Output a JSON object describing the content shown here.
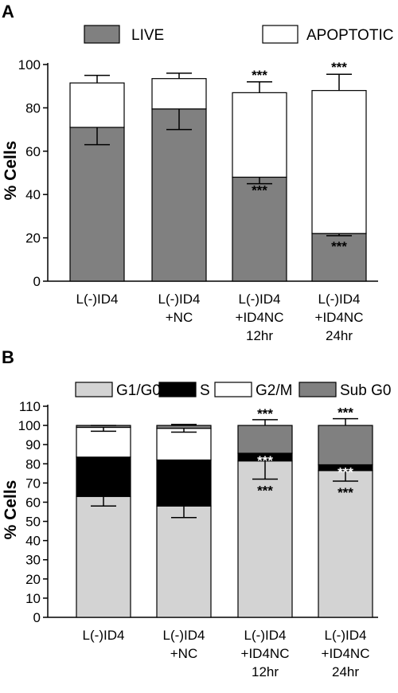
{
  "chart_data": [
    {
      "panel": "A",
      "type": "bar",
      "stacked": true,
      "categories": [
        [
          "L(-)ID4"
        ],
        [
          "L(-)ID4",
          "+NC"
        ],
        [
          "L(-)ID4",
          "+ID4NC",
          "12hr"
        ],
        [
          "L(-)ID4",
          "+ID4NC",
          "24hr"
        ]
      ],
      "series": [
        {
          "name": "LIVE",
          "color": "#808080",
          "values": [
            71,
            79.5,
            48,
            22
          ],
          "err_low": [
            63,
            70,
            45,
            21
          ],
          "err_high": [
            71,
            79.5,
            48,
            22
          ],
          "annotations": [
            "",
            "",
            "***",
            "***"
          ]
        },
        {
          "name": "APOPTOTIC",
          "color": "#ffffff",
          "values": [
            20.5,
            14,
            39,
            66
          ],
          "totals": [
            91.5,
            93.5,
            87,
            88
          ],
          "err_high": [
            95,
            96,
            92,
            95.5
          ],
          "annotations": [
            "",
            "",
            "***",
            "***"
          ]
        }
      ],
      "ylabel": "% Cells",
      "ylim": [
        0,
        100
      ],
      "yticks": [
        0,
        20,
        40,
        60,
        80,
        100
      ],
      "legend": "top"
    },
    {
      "panel": "B",
      "type": "bar",
      "stacked": true,
      "categories": [
        [
          "L(-)ID4"
        ],
        [
          "L(-)ID4",
          "+NC"
        ],
        [
          "L(-)ID4",
          "+ID4NC",
          "12hr"
        ],
        [
          "L(-)ID4",
          "+ID4NC",
          "24hr"
        ]
      ],
      "series": [
        {
          "name": "G1/G0",
          "color": "#d3d3d3",
          "values": [
            63,
            58,
            81.5,
            76.5
          ],
          "err_low": [
            58,
            52,
            72,
            71
          ],
          "annotations": [
            "",
            "",
            "***",
            "***"
          ]
        },
        {
          "name": "S",
          "color": "#000000",
          "values": [
            20.5,
            24,
            4,
            3
          ],
          "annotations": [
            "",
            "",
            "***",
            "***"
          ]
        },
        {
          "name": "G2/M",
          "color": "#ffffff",
          "values": [
            15.5,
            16.5,
            0,
            0
          ],
          "err_low": [
            97,
            96.5,
            null,
            null
          ]
        },
        {
          "name": "Sub G0",
          "color": "#808080",
          "values": [
            1,
            1.5,
            14.5,
            20.5
          ],
          "err_high": [
            100,
            100.5,
            103,
            103.5
          ],
          "annotations": [
            "",
            "",
            "***",
            "***"
          ]
        }
      ],
      "ylabel": "% Cells",
      "ylim": [
        0,
        110
      ],
      "yticks": [
        0,
        10,
        20,
        30,
        40,
        50,
        60,
        70,
        80,
        90,
        100,
        110
      ],
      "legend": "top"
    }
  ]
}
